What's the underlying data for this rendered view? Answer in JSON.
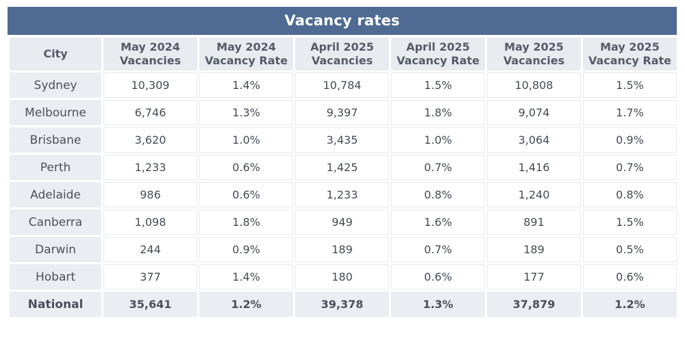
{
  "title": "Vacancy rates",
  "headers": [
    "City",
    "May 2024\nVacancies",
    "May 2024\nVacancy Rate",
    "April 2025\nVacancies",
    "April 2025\nVacancy Rate",
    "May 2025\nVacancies",
    "May 2025\nVacancy Rate"
  ],
  "rows": [
    [
      "Sydney",
      "10,309",
      "1.4%",
      "10,784",
      "1.5%",
      "10,808",
      "1.5%"
    ],
    [
      "Melbourne",
      "6,746",
      "1.3%",
      "9,397",
      "1.8%",
      "9,074",
      "1.7%"
    ],
    [
      "Brisbane",
      "3,620",
      "1.0%",
      "3,435",
      "1.0%",
      "3,064",
      "0.9%"
    ],
    [
      "Perth",
      "1,233",
      "0.6%",
      "1,425",
      "0.7%",
      "1,416",
      "0.7%"
    ],
    [
      "Adelaide",
      "986",
      "0.6%",
      "1,233",
      "0.8%",
      "1,240",
      "0.8%"
    ],
    [
      "Canberra",
      "1,098",
      "1.8%",
      "949",
      "1.6%",
      "891",
      "1.5%"
    ],
    [
      "Darwin",
      "244",
      "0.9%",
      "189",
      "0.7%",
      "189",
      "0.5%"
    ],
    [
      "Hobart",
      "377",
      "1.4%",
      "180",
      "0.6%",
      "177",
      "0.6%"
    ]
  ],
  "total": [
    "National",
    "35,641",
    "1.2%",
    "39,378",
    "1.3%",
    "37,879",
    "1.2%"
  ],
  "colors": {
    "title_bg": "#4f6b94",
    "header_bg": "#e8ebf0",
    "city_bg": "#eaedf1"
  }
}
